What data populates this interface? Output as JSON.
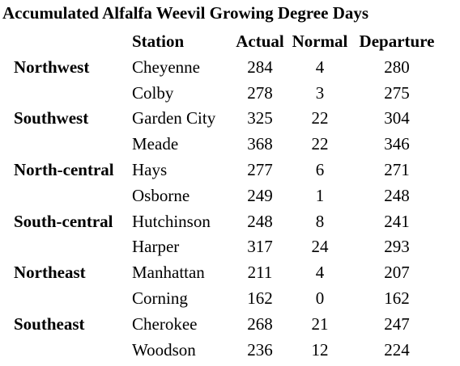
{
  "title": "Accumulated Alfalfa Weevil Growing Degree Days",
  "headers": {
    "station": "Station",
    "actual": "Actual",
    "normal": "Normal",
    "departure": "Departure"
  },
  "rows": [
    {
      "region": "Northwest",
      "station": "Cheyenne",
      "actual": "284",
      "normal": "4",
      "departure": "280"
    },
    {
      "region": "",
      "station": "Colby",
      "actual": "278",
      "normal": "3",
      "departure": "275"
    },
    {
      "region": "Southwest",
      "station": "Garden City",
      "actual": "325",
      "normal": "22",
      "departure": "304"
    },
    {
      "region": "",
      "station": "Meade",
      "actual": "368",
      "normal": "22",
      "departure": "346"
    },
    {
      "region": "North-central",
      "station": "Hays",
      "actual": "277",
      "normal": "6",
      "departure": "271"
    },
    {
      "region": "",
      "station": "Osborne",
      "actual": "249",
      "normal": "1",
      "departure": "248"
    },
    {
      "region": "South-central",
      "station": "Hutchinson",
      "actual": "248",
      "normal": "8",
      "departure": "241"
    },
    {
      "region": "",
      "station": "Harper",
      "actual": "317",
      "normal": "24",
      "departure": "293"
    },
    {
      "region": "Northeast",
      "station": "Manhattan",
      "actual": "211",
      "normal": "4",
      "departure": "207"
    },
    {
      "region": "",
      "station": "Corning",
      "actual": "162",
      "normal": "0",
      "departure": "162"
    },
    {
      "region": "Southeast",
      "station": "Cherokee",
      "actual": "268",
      "normal": "21",
      "departure": "247"
    },
    {
      "region": "",
      "station": "Woodson",
      "actual": "236",
      "normal": "12",
      "departure": "224"
    }
  ]
}
